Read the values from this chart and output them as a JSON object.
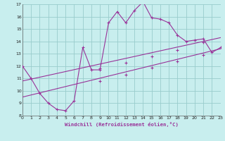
{
  "xlabel": "Windchill (Refroidissement éolien,°C)",
  "xlim": [
    0,
    23
  ],
  "ylim": [
    8,
    17
  ],
  "yticks": [
    8,
    9,
    10,
    11,
    12,
    13,
    14,
    15,
    16,
    17
  ],
  "xticks": [
    0,
    1,
    2,
    3,
    4,
    5,
    6,
    7,
    8,
    9,
    10,
    11,
    12,
    13,
    14,
    15,
    16,
    17,
    18,
    19,
    20,
    21,
    22,
    23
  ],
  "background_color": "#c8eeee",
  "grid_color": "#99cccc",
  "line_color": "#993399",
  "series1_x": [
    0,
    1,
    2,
    3,
    4,
    5,
    6,
    7,
    8,
    9,
    10,
    11,
    12,
    13,
    14,
    15,
    16,
    17,
    18,
    19,
    20,
    21,
    22,
    23
  ],
  "series1_y": [
    12,
    11,
    9.8,
    9,
    8.5,
    8.4,
    9.2,
    13.5,
    11.7,
    11.7,
    15.5,
    16.4,
    15.5,
    16.5,
    17.2,
    15.9,
    15.8,
    15.5,
    14.5,
    14.0,
    14.1,
    14.2,
    13.1,
    13.5
  ],
  "series2_x": [
    0,
    23
  ],
  "series2_y": [
    10.8,
    14.3
  ],
  "series3_x": [
    0,
    23
  ],
  "series3_y": [
    9.5,
    13.4
  ],
  "series2_mid_x": [
    9,
    12,
    15,
    18,
    21
  ],
  "series2_mid_y": [
    11.8,
    12.3,
    12.8,
    13.3,
    13.9
  ],
  "series3_mid_x": [
    9,
    12,
    15,
    18,
    21
  ],
  "series3_mid_y": [
    10.8,
    11.3,
    11.9,
    12.4,
    12.9
  ]
}
